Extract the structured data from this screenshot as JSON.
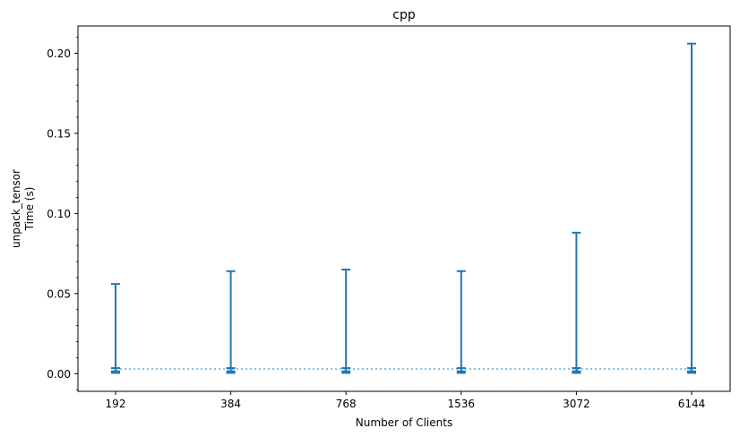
{
  "chart_data": {
    "type": "errorbar",
    "title": "cpp",
    "xlabel": "Number of Clients",
    "ylabel_lines": [
      "unpack_tensor",
      "Time (s)"
    ],
    "categories": [
      "192",
      "384",
      "768",
      "1536",
      "3072",
      "6144"
    ],
    "ylim": [
      -0.011,
      0.217
    ],
    "yticks": [
      0.0,
      0.05,
      0.1,
      0.15,
      0.2
    ],
    "ytick_labels": [
      "0.00",
      "0.05",
      "0.10",
      "0.15",
      "0.20"
    ],
    "yminor_step": 0.01,
    "series": [
      {
        "mean": [
          0.003,
          0.003,
          0.003,
          0.003,
          0.003,
          0.003
        ],
        "min": [
          0.0005,
          0.0005,
          0.0005,
          0.0005,
          0.0005,
          0.0005
        ],
        "max": [
          0.056,
          0.064,
          0.065,
          0.064,
          0.088,
          0.206
        ],
        "q_low": [
          0.0015,
          0.0015,
          0.0015,
          0.0015,
          0.0015,
          0.0015
        ],
        "q_high": [
          0.0035,
          0.0035,
          0.0035,
          0.0035,
          0.0035,
          0.0035
        ]
      }
    ],
    "colors": {
      "bar": "#1f77b4",
      "mean_line": "#8fbfe0"
    },
    "grid": false
  }
}
